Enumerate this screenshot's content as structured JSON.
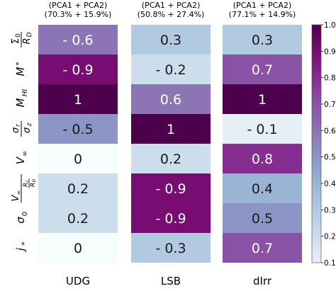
{
  "chart_data": {
    "type": "heatmap",
    "panels": [
      {
        "name": "UDG",
        "pca_label_line1": "(PCA1 + PCA2)",
        "pca_label_line2": "(70.3% + 15.9%)"
      },
      {
        "name": "LSB",
        "pca_label_line1": "(PCA1 + PCA2)",
        "pca_label_line2": "(50.8% + 27.4%)"
      },
      {
        "name": "dIrr",
        "pca_label_line1": "(PCA1 + PCA2)",
        "pca_label_line2": "(77.1% + 14.9%)"
      }
    ],
    "row_labels": [
      "Σ0 / RD",
      "M*",
      "MHI",
      "σr / σz",
      "V∞",
      "V∞ · Rc/RD",
      "σ0",
      "j*"
    ],
    "columns": [
      {
        "name": "UDG",
        "values": [
          0.6,
          0.9,
          1,
          0.5,
          0,
          0.2,
          0.2,
          0
        ],
        "labels": [
          "- 0.6",
          "- 0.9",
          "1",
          "- 0.5",
          "0",
          "0.2",
          "0.2",
          "0"
        ]
      },
      {
        "name": "LSB",
        "values": [
          0.3,
          0.2,
          0.6,
          1,
          0.2,
          0.9,
          0.9,
          0.3
        ],
        "labels": [
          "0.3",
          "- 0.2",
          "0.6",
          "1",
          "0.2",
          "- 0.9",
          "- 0.9",
          "- 0.3"
        ]
      },
      {
        "name": "dIrr",
        "values": [
          0.3,
          0.7,
          1,
          0.1,
          0.8,
          0.4,
          0.5,
          0.7
        ],
        "labels": [
          "0.3",
          "0.7",
          "1",
          "- 0.1",
          "0.8",
          "0.4",
          "0.5",
          "0.7"
        ]
      }
    ],
    "colorbar": {
      "colormap": "BuPu",
      "range": [
        0.1,
        1.0
      ],
      "ticks": [
        "0.1",
        "0.2",
        "0.3",
        "0.4",
        "0.5",
        "0.6",
        "0.7",
        "0.8",
        "0.9",
        "1.0"
      ]
    }
  }
}
